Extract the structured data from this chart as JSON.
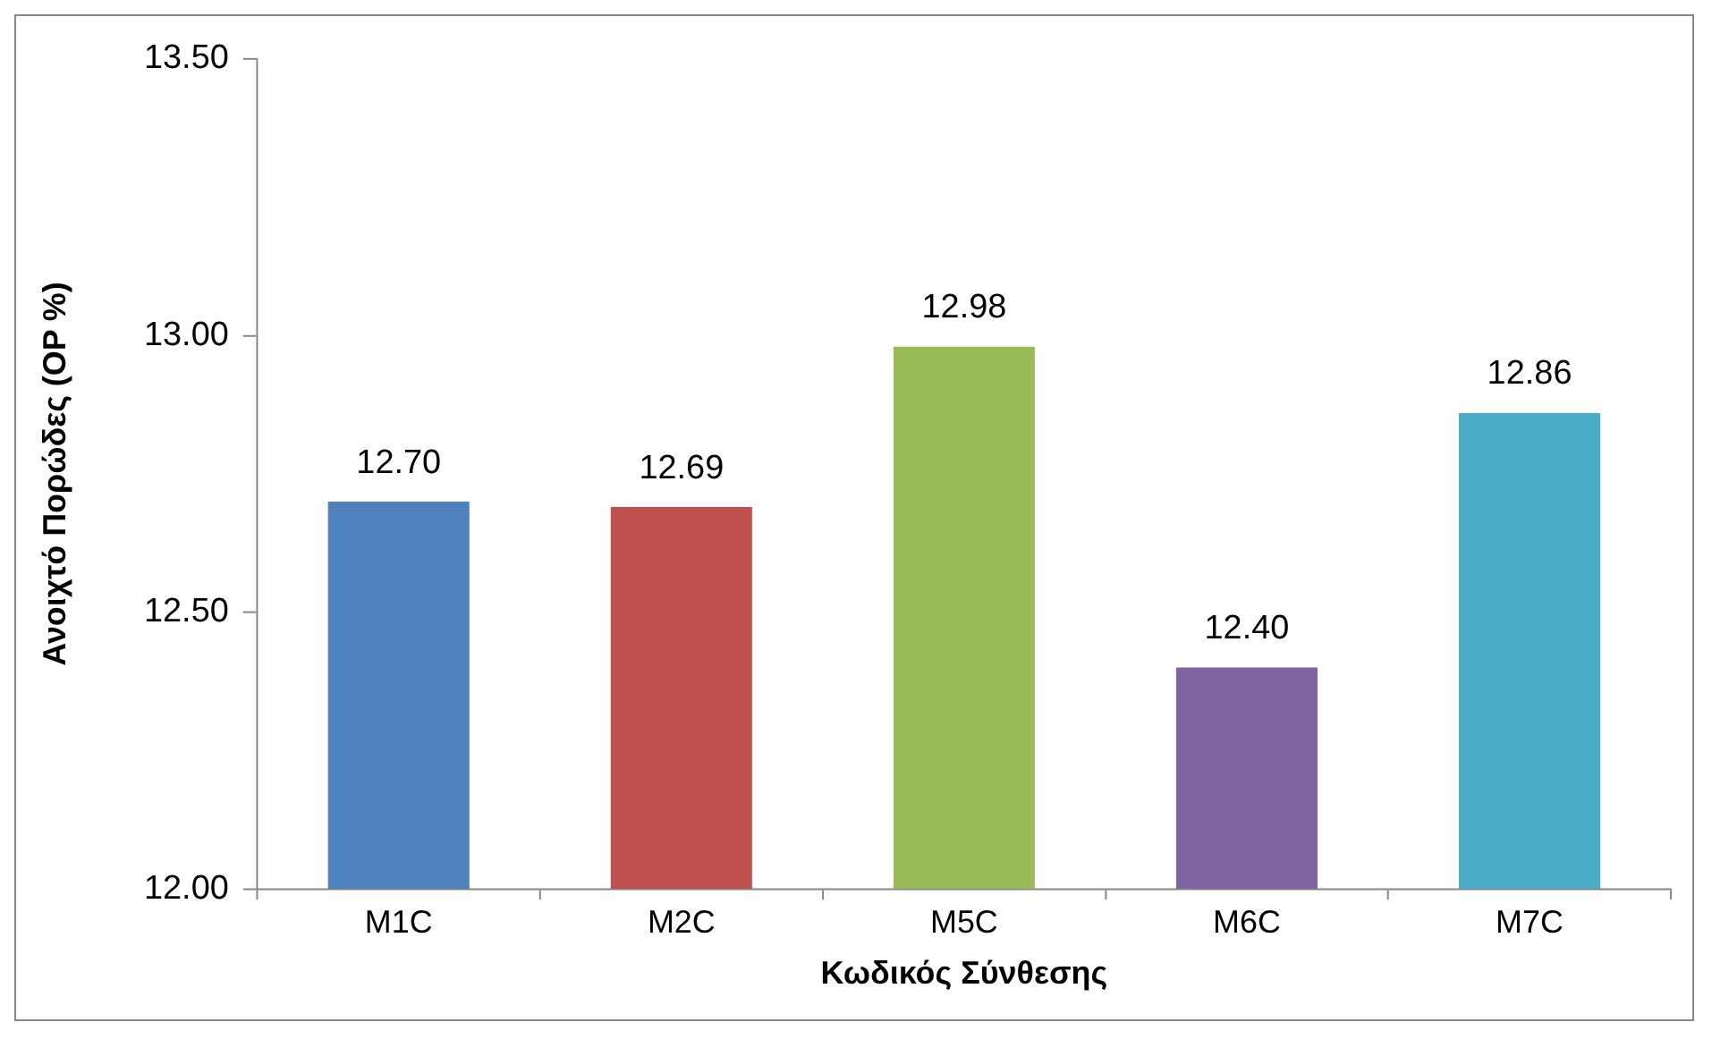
{
  "chart_data": {
    "type": "bar",
    "xlabel": "Κωδικός Σύνθεσης",
    "ylabel": "Ανοιχτό Πορώδες (OP %)",
    "categories": [
      "M1C",
      "M2C",
      "M5C",
      "M6C",
      "M7C"
    ],
    "values": [
      12.7,
      12.69,
      12.98,
      12.4,
      12.86
    ],
    "colors": [
      "#4f81bd",
      "#c0504d",
      "#9bbb59",
      "#8064a2",
      "#4bacc6"
    ],
    "value_labels": [
      "12.70",
      "12.69",
      "12.98",
      "12.40",
      "12.86"
    ],
    "ylim": [
      12,
      13.5
    ],
    "yticks": [
      {
        "value": 12,
        "label": "12.00"
      },
      {
        "value": 12.5,
        "label": "12.50"
      },
      {
        "value": 13,
        "label": "13.00"
      },
      {
        "value": 13.5,
        "label": "13.50"
      }
    ],
    "grid": false,
    "legend": false
  }
}
